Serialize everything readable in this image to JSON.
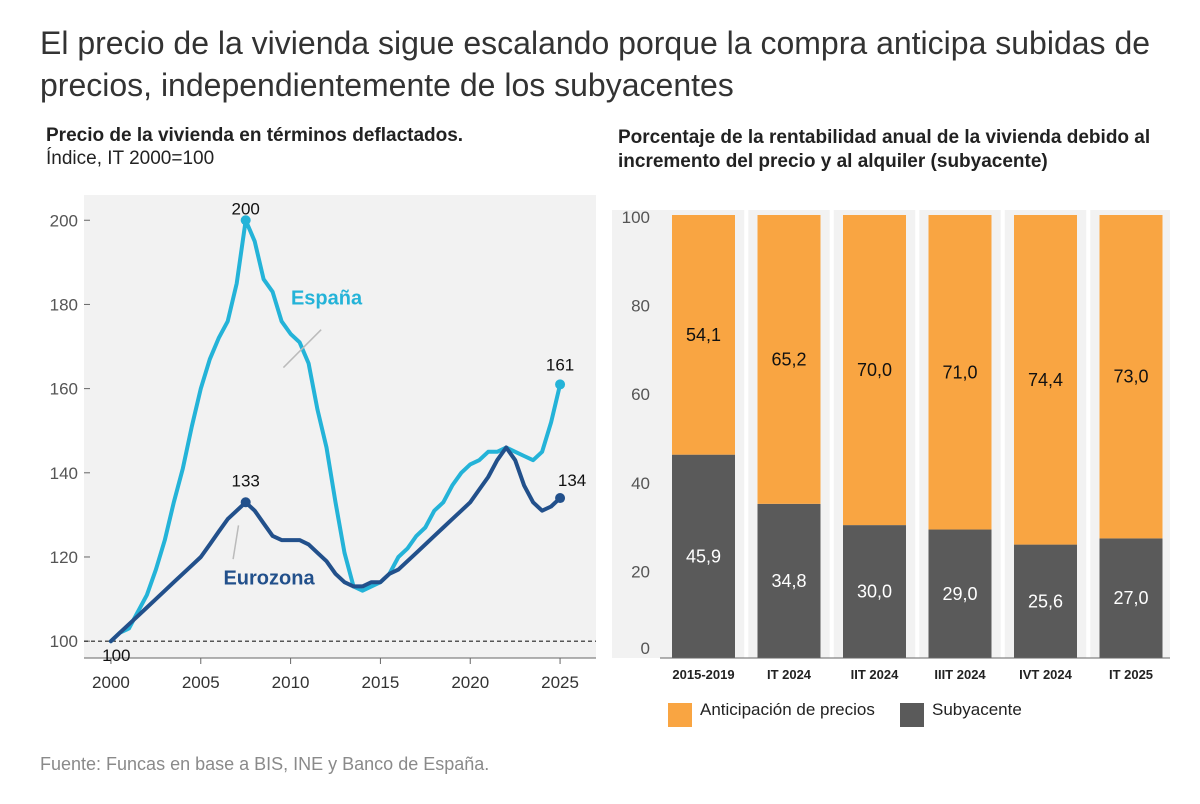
{
  "title": "El precio de la vivienda sigue escalando porque la compra anticipa subidas de precios, independientemente de los subyacentes",
  "source": "Fuente: Funcas en base a BIS, INE y Banco de España.",
  "colors": {
    "espana": "#24b3d8",
    "eurozona": "#22508b",
    "anticipacion": "#f9a542",
    "subyacente": "#5a5a5a",
    "panel": "#f2f2f2"
  },
  "chart_data": [
    {
      "type": "line",
      "title": "Precio de la vivienda en términos deflactados.",
      "subtitle": "Índice, IT 2000=100",
      "xlim": [
        1998.5,
        2027
      ],
      "ylim": [
        96,
        206
      ],
      "x_ticks": [
        2000,
        2005,
        2010,
        2015,
        2020,
        2025
      ],
      "y_ticks": [
        100,
        120,
        140,
        160,
        180,
        200
      ],
      "reference_line": 100,
      "series": [
        {
          "name": "España",
          "x": [
            2000,
            2000.5,
            2001,
            2001.5,
            2002,
            2002.5,
            2003,
            2003.5,
            2004,
            2004.5,
            2005,
            2005.5,
            2006,
            2006.5,
            2007,
            2007.5,
            2008,
            2008.5,
            2009,
            2009.5,
            2010,
            2010.5,
            2011,
            2011.5,
            2012,
            2012.5,
            2013,
            2013.5,
            2014,
            2014.5,
            2015,
            2015.5,
            2016,
            2016.5,
            2017,
            2017.5,
            2018,
            2018.5,
            2019,
            2019.5,
            2020,
            2020.5,
            2021,
            2021.5,
            2022,
            2022.5,
            2023,
            2023.5,
            2024,
            2024.5,
            2025
          ],
          "values": [
            100,
            102,
            103,
            107,
            111,
            117,
            124,
            133,
            141,
            151,
            160,
            167,
            172,
            176,
            185,
            200,
            195,
            186,
            183,
            176,
            173,
            171,
            166,
            155,
            146,
            133,
            121,
            113,
            112,
            113,
            114,
            116,
            120,
            122,
            125,
            127,
            131,
            133,
            137,
            140,
            142,
            143,
            145,
            145,
            146,
            145,
            144,
            143,
            145,
            152,
            161
          ]
        },
        {
          "name": "Eurozona",
          "x": [
            2000,
            2000.5,
            2001,
            2001.5,
            2002,
            2002.5,
            2003,
            2003.5,
            2004,
            2004.5,
            2005,
            2005.5,
            2006,
            2006.5,
            2007,
            2007.5,
            2008,
            2008.5,
            2009,
            2009.5,
            2010,
            2010.5,
            2011,
            2011.5,
            2012,
            2012.5,
            2013,
            2013.5,
            2014,
            2014.5,
            2015,
            2015.5,
            2016,
            2016.5,
            2017,
            2017.5,
            2018,
            2018.5,
            2019,
            2019.5,
            2020,
            2020.5,
            2021,
            2021.5,
            2022,
            2022.5,
            2023,
            2023.5,
            2024,
            2024.5,
            2025
          ],
          "values": [
            100,
            102,
            104,
            106,
            108,
            110,
            112,
            114,
            116,
            118,
            120,
            123,
            126,
            129,
            131,
            133,
            131,
            128,
            125,
            124,
            124,
            124,
            123,
            121,
            119,
            116,
            114,
            113,
            113,
            114,
            114,
            116,
            117,
            119,
            121,
            123,
            125,
            127,
            129,
            131,
            133,
            136,
            139,
            143,
            146,
            143,
            137,
            133,
            131,
            132,
            134
          ]
        }
      ],
      "labels": {
        "peak_espana": "200",
        "end_espana": "161",
        "peak_eurozona": "133",
        "end_eurozona": "134",
        "base": "100",
        "espana": "España",
        "eurozona": "Eurozona"
      }
    },
    {
      "type": "bar",
      "stacked": true,
      "title": "Porcentaje de la rentabilidad anual de la vivienda debido al incremento del precio y al alquiler (subyacente)",
      "categories": [
        "2015-2019",
        "IT 2024",
        "IIT 2024",
        "IIIT 2024",
        "IVT 2024",
        "IT 2025"
      ],
      "ylim": [
        0,
        100
      ],
      "y_ticks": [
        0,
        20,
        40,
        60,
        80,
        100
      ],
      "series": [
        {
          "name": "Subyacente",
          "values": [
            45.9,
            34.8,
            30.0,
            29.0,
            25.6,
            27.0
          ],
          "labels": [
            "45,9",
            "34,8",
            "30,0",
            "29,0",
            "25,6",
            "27,0"
          ]
        },
        {
          "name": "Anticipación de precios",
          "values": [
            54.1,
            65.2,
            70.0,
            71.0,
            74.4,
            73.0
          ],
          "labels": [
            "54,1",
            "65,2",
            "70,0",
            "71,0",
            "74,4",
            "73,0"
          ]
        }
      ],
      "legend": {
        "position": "bottom",
        "items": [
          "Anticipación de precios",
          "Subyacente"
        ]
      }
    }
  ]
}
